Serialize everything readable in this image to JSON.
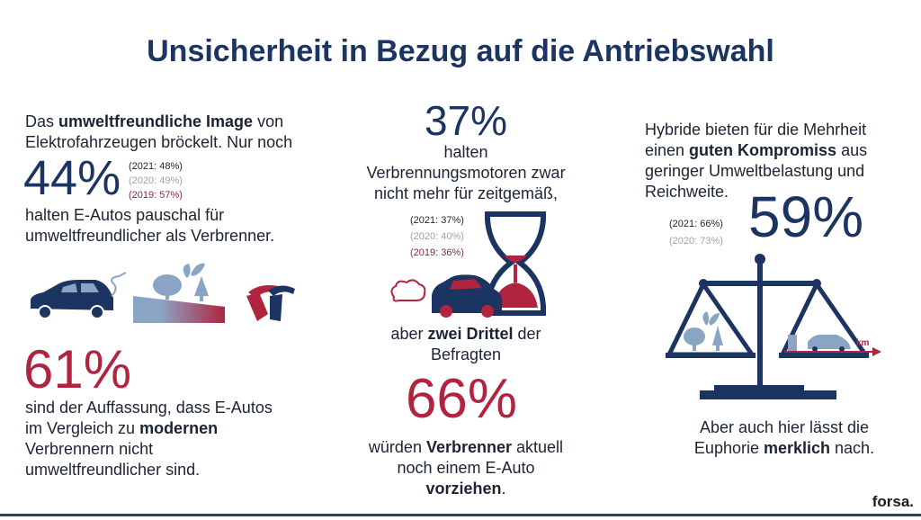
{
  "title": "Unsicherheit in Bezug auf die Antriebswahl",
  "left": {
    "intro": {
      "p1": "Das ",
      "b1": "umweltfreundliche Image",
      "p2": " von",
      "line2": "Elektrofahrzeugen bröckelt. Nur noch"
    },
    "stat1": {
      "value": "44%",
      "history": [
        "(2021: 48%)",
        "(2020: 49%)",
        "(2019: 57%)"
      ]
    },
    "stat1_text": [
      "halten E-Autos pauschal für",
      "umweltfreundlicher als Verbrenner."
    ],
    "stat2": {
      "value": "61%"
    },
    "stat2_text": {
      "l1": "sind der Auffassung, dass E-Autos",
      "l2a": "im Vergleich zu ",
      "l2b": "modernen",
      "l3": "Verbrennern nicht",
      "l4": "umweltfreundlicher sind."
    }
  },
  "middle": {
    "stat1": {
      "value": "37%",
      "history": [
        "(2021: 37%)",
        "(2020: 40%)",
        "(2019: 36%)"
      ]
    },
    "stat1_text": [
      "halten",
      "Verbrennungsmotoren zwar",
      "nicht mehr für zeitgemäß,"
    ],
    "bridge": {
      "p1": "aber ",
      "b1": "zwei Drittel",
      "p2": " der",
      "l2": "Befragten"
    },
    "stat2": {
      "value": "66%"
    },
    "stat2_text": {
      "p1": "würden ",
      "b1": "Verbrenner",
      "p2": " aktuell",
      "l2": "noch einem E-Auto",
      "b2": "vorziehen",
      "p3": "."
    }
  },
  "right": {
    "intro": {
      "l1": "Hybride bieten für die Mehrheit",
      "l2a": "einen ",
      "l2b": "guten Kompromiss",
      "l2c": " aus",
      "l3": "geringer Umweltbelastung und",
      "l4": "Reichweite."
    },
    "stat": {
      "value": "59%",
      "history": [
        "(2021: 66%)",
        "(2020: 73%)"
      ]
    },
    "scale_label": "km",
    "outro": {
      "l1": "Aber auch hier lässt die",
      "p1": "Euphorie ",
      "b1": "merklich",
      "p2": " nach."
    }
  },
  "footer": {
    "brand": "forsa."
  },
  "colors": {
    "navy": "#1c3461",
    "red": "#b0243f",
    "light_blue": "#8aa5c4",
    "gray": "#9aa3ad"
  }
}
